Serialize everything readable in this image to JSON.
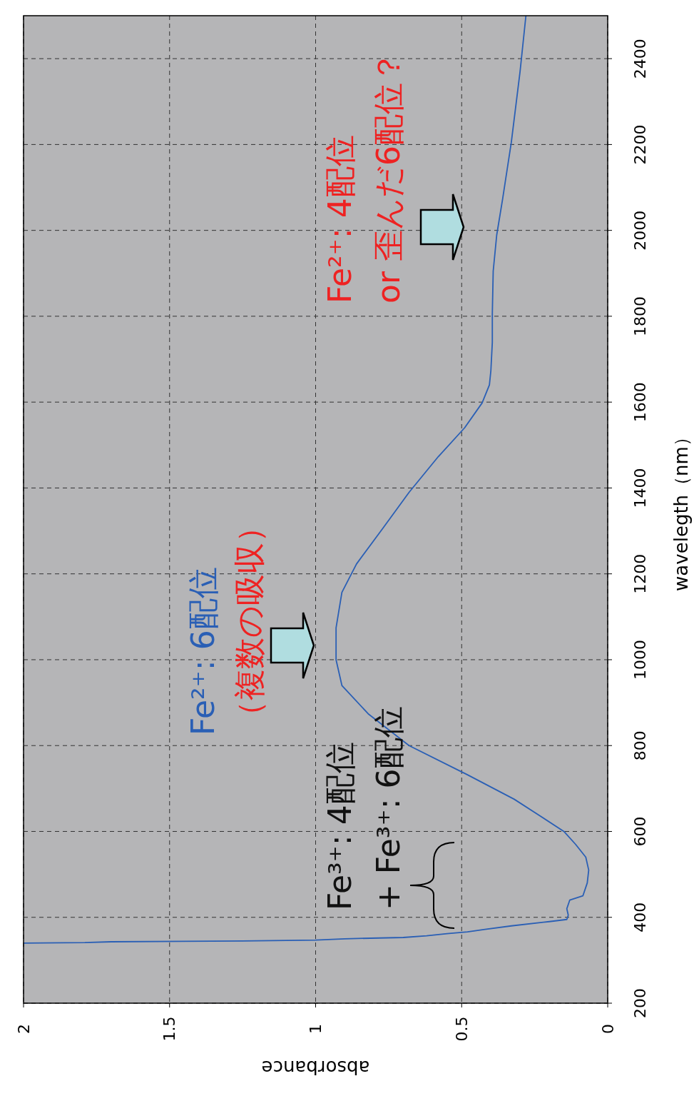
{
  "chart_data": {
    "type": "line",
    "xlabel": "absorbance",
    "ylabel": "wavelegth（nm）",
    "xlim": [
      2,
      0
    ],
    "xticks": [
      0,
      0.5,
      1,
      1.5,
      2
    ],
    "ylim": [
      200,
      2500
    ],
    "yticks": [
      200,
      400,
      600,
      800,
      1000,
      1200,
      1400,
      1600,
      1800,
      2000,
      2200,
      2400
    ],
    "grid": true,
    "line_style": "solid",
    "marker": "none",
    "series": [
      {
        "color": "#2a5fb5",
        "values": [
          340,
          341,
          343,
          345,
          347,
          350,
          353,
          357,
          362,
          366,
          372,
          380,
          390,
          395,
          405,
          420,
          440,
          450,
          480,
          510,
          540,
          570,
          600,
          640,
          675,
          732,
          800,
          874,
          940,
          1000,
          1074,
          1157,
          1223,
          1306,
          1390,
          1473,
          1540,
          1598,
          1640,
          1673,
          1739,
          1806,
          1905,
          1989,
          2072,
          2205,
          2370,
          2500
        ],
        "x": [
          2.0,
          1.79,
          1.7,
          1.25,
          1.0,
          0.9,
          0.7,
          0.62,
          0.55,
          0.48,
          0.42,
          0.33,
          0.2,
          0.14,
          0.135,
          0.14,
          0.13,
          0.085,
          0.07,
          0.065,
          0.075,
          0.11,
          0.15,
          0.24,
          0.32,
          0.48,
          0.68,
          0.82,
          0.91,
          0.93,
          0.93,
          0.91,
          0.86,
          0.77,
          0.68,
          0.58,
          0.49,
          0.43,
          0.405,
          0.4,
          0.395,
          0.395,
          0.392,
          0.38,
          0.36,
          0.33,
          0.3,
          0.28
        ]
      }
    ],
    "annotations": [
      "Fe²⁺: 6配位",
      "（複数の吸収）",
      "Fe³⁺: 4配位",
      "+ Fe³⁺: 6配位",
      "Fe²⁺: 4配位",
      "or 歪んだ6配位？"
    ]
  }
}
